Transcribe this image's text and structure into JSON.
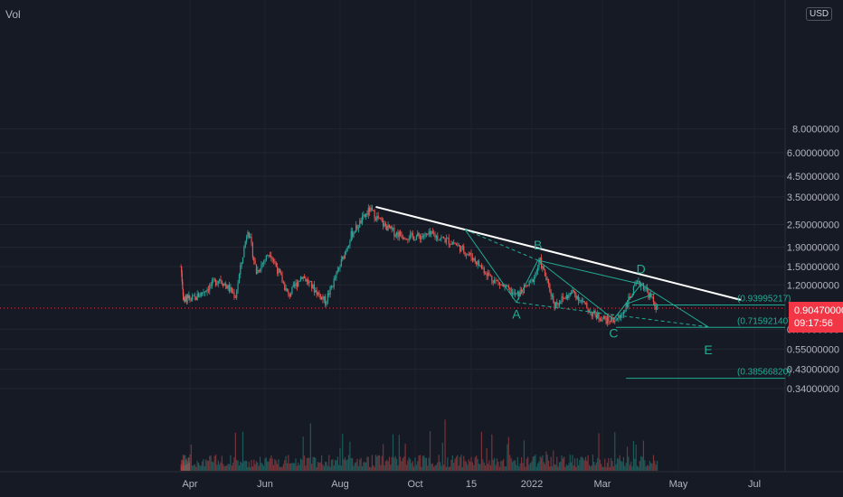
{
  "legend": {
    "volume_label": "Vol",
    "currency": "USD"
  },
  "current_price": {
    "value": "0.90470000",
    "countdown": "09:17:56",
    "value_num": 0.9047
  },
  "chart_data": {
    "type": "candlestick",
    "title": "",
    "yscale": "log",
    "ylim": [
      0.3,
      8.0
    ],
    "y_ticks": [
      "8.0000000",
      "6.00000000",
      "4.50000000",
      "3.50000000",
      "2.50000000",
      "1.90000000",
      "1.50000000",
      "1.20000000",
      "0.70000000",
      "0.55000000",
      "0.43000000",
      "0.34000000"
    ],
    "x_ticks": [
      "Apr",
      "Jun",
      "Aug",
      "Oct",
      "15",
      "2022",
      "Mar",
      "May",
      "Jul"
    ],
    "price_path": [
      [
        "2021-03-15",
        1.5
      ],
      [
        "2021-03-20",
        1.0
      ],
      [
        "2021-04-05",
        1.02
      ],
      [
        "2021-04-25",
        1.3
      ],
      [
        "2021-05-08",
        1.05
      ],
      [
        "2021-05-18",
        2.4
      ],
      [
        "2021-05-25",
        1.4
      ],
      [
        "2021-06-05",
        1.8
      ],
      [
        "2021-06-20",
        1.05
      ],
      [
        "2021-07-01",
        1.35
      ],
      [
        "2021-07-20",
        0.98
      ],
      [
        "2021-07-30",
        1.4
      ],
      [
        "2021-08-10",
        2.2
      ],
      [
        "2021-08-25",
        3.0
      ],
      [
        "2021-09-05",
        2.5
      ],
      [
        "2021-09-15",
        2.25
      ],
      [
        "2021-09-28",
        2.15
      ],
      [
        "2021-10-15",
        2.2
      ],
      [
        "2021-11-01",
        2.0
      ],
      [
        "2021-11-15",
        1.7
      ],
      [
        "2021-12-01",
        1.3
      ],
      [
        "2021-12-20",
        1.05
      ],
      [
        "2022-01-01",
        1.25
      ],
      [
        "2022-01-08",
        1.6
      ],
      [
        "2022-01-20",
        0.95
      ],
      [
        "2022-02-05",
        1.1
      ],
      [
        "2022-02-20",
        0.85
      ],
      [
        "2022-03-05",
        0.78
      ],
      [
        "2022-03-15",
        0.8
      ],
      [
        "2022-03-28",
        1.2
      ],
      [
        "2022-04-02",
        1.22
      ],
      [
        "2022-04-10",
        1.0
      ],
      [
        "2022-04-14",
        0.9
      ]
    ],
    "trendline": {
      "from": [
        "2021-08-30",
        3.1
      ],
      "to": [
        "2022-06-20",
        1.0
      ]
    },
    "wave_points": [
      {
        "label": "A",
        "date": "2021-12-20",
        "price": 0.97
      },
      {
        "label": "B",
        "date": "2022-01-06",
        "price": 1.62
      },
      {
        "label": "C",
        "date": "2022-03-10",
        "price": 0.79
      },
      {
        "label": "D",
        "date": "2022-04-01",
        "price": 1.21
      },
      {
        "label": "E",
        "date": "2022-05-25",
        "price": 0.72
      }
    ],
    "fib_levels": [
      {
        "label": "(0.93995217)",
        "value": 0.93995217
      },
      {
        "label": "(0.71592140)",
        "value": 0.7159214
      },
      {
        "label": "(0.38566820)",
        "value": 0.3856682
      }
    ]
  },
  "colors": {
    "up": "#26a69a",
    "down": "#ef5350",
    "trend": "#ffffff",
    "fib": "#22ab94",
    "price": "#f23645"
  }
}
